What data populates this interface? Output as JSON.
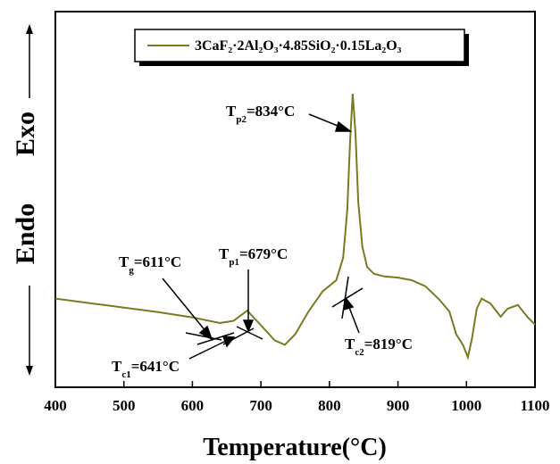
{
  "chart_data": {
    "type": "line",
    "xlabel": "Temperature(°C)",
    "ylabel_endo": "Endo",
    "ylabel_exo": "Exo",
    "xlim": [
      400,
      1100
    ],
    "ylim": [
      0,
      1
    ],
    "x_ticks": [
      "400",
      "500",
      "600",
      "700",
      "800",
      "900",
      "1000",
      "1100"
    ],
    "legend": {
      "placement": "top-center",
      "label": "3CaF₂·2Al₂O₃·4.85SiO₂·0.15La₂O₃"
    },
    "series": [
      {
        "name": "3CaF₂·2Al₂O₃·4.85SiO₂·0.15La₂O₃",
        "color": "#7a7a1f",
        "x": [
          400,
          450,
          500,
          550,
          600,
          640,
          660,
          680,
          700,
          720,
          735,
          750,
          770,
          790,
          810,
          820,
          826,
          830,
          834,
          838,
          842,
          848,
          855,
          865,
          880,
          900,
          920,
          940,
          960,
          975,
          985,
          995,
          1002,
          1008,
          1015,
          1022,
          1035,
          1050,
          1060,
          1075,
          1090,
          1100
        ],
        "y": [
          0.236,
          0.224,
          0.212,
          0.2,
          0.186,
          0.171,
          0.177,
          0.204,
          0.165,
          0.125,
          0.113,
          0.141,
          0.203,
          0.255,
          0.285,
          0.345,
          0.471,
          0.651,
          0.781,
          0.677,
          0.494,
          0.374,
          0.32,
          0.302,
          0.295,
          0.292,
          0.285,
          0.269,
          0.234,
          0.202,
          0.141,
          0.112,
          0.08,
          0.129,
          0.209,
          0.236,
          0.223,
          0.188,
          0.209,
          0.219,
          0.185,
          0.167
        ]
      }
    ],
    "annotations": [
      {
        "sym": "T",
        "sub": "g",
        "value": "=611°C"
      },
      {
        "sym": "T",
        "sub": "p1",
        "value": "=679°C"
      },
      {
        "sym": "T",
        "sub": "c1",
        "value": "=641°C"
      },
      {
        "sym": "T",
        "sub": "p2",
        "value": "=834°C"
      },
      {
        "sym": "T",
        "sub": "c2",
        "value": "=819°C"
      }
    ]
  }
}
